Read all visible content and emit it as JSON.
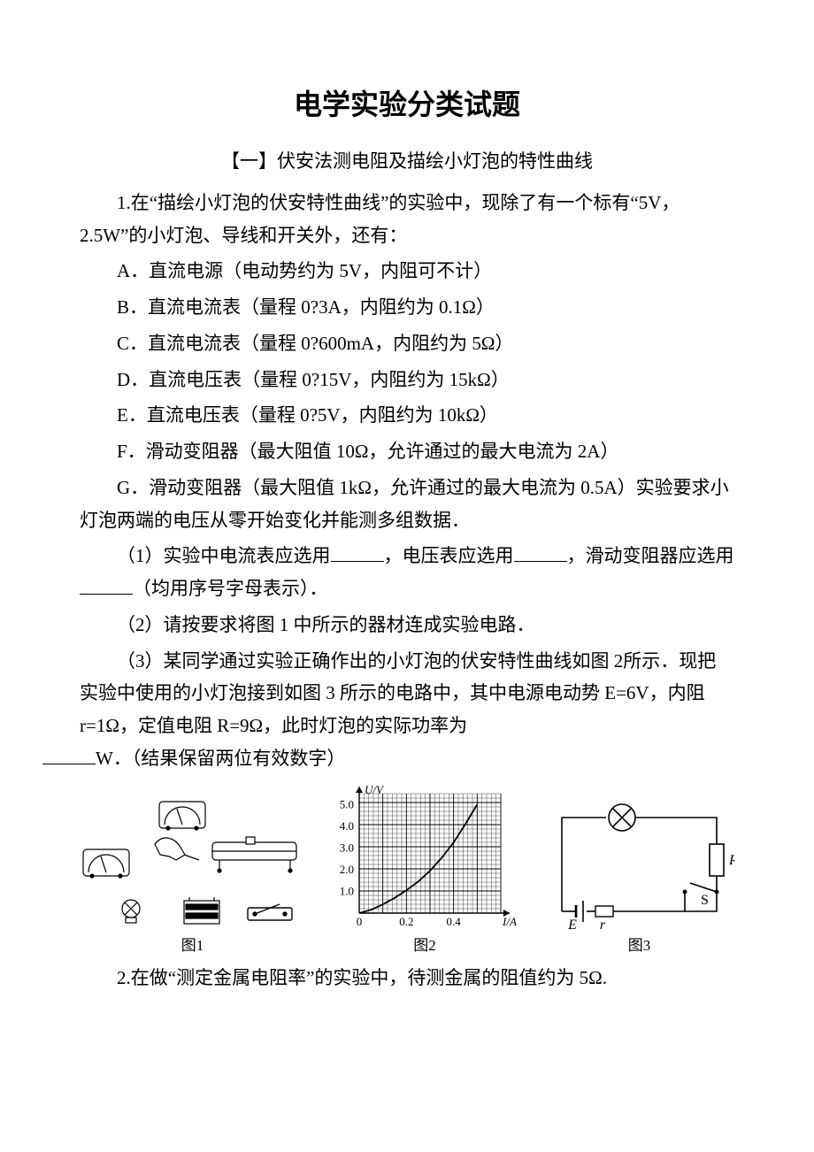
{
  "title": "电学实验分类试题",
  "section1": "【一】伏安法测电阻及描绘小灯泡的特性曲线",
  "q1": {
    "stem": "1.在“描绘小灯泡的伏安特性曲线”的实验中，现除了有一个标有“5V，2.5W”的小灯泡、导线和开关外，还有：",
    "optA": "A．直流电源（电动势约为 5V，内阻可不计）",
    "optB": "B．直流电流表（量程 0?3A，内阻约为 0.1Ω）",
    "optC": "C．直流电流表（量程 0?600mA，内阻约为 5Ω）",
    "optD": "D．直流电压表（量程 0?15V，内阻约为 15kΩ）",
    "optE": "E．直流电压表（量程 0?5V，内阻约为 10kΩ）",
    "optF": "F．滑动变阻器（最大阻值 10Ω，允许通过的最大电流为 2A）",
    "optG": "G．滑动变阻器（最大阻值 1kΩ，允许通过的最大电流为 0.5A）实验要求小灯泡两端的电压从零开始变化并能测多组数据．",
    "sub1_a": "（1）实验中电流表应选用",
    "sub1_b": "，电压表应选用",
    "sub1_c": "，滑动变阻器应选用",
    "sub1_d": "（均用序号字母表示）．",
    "sub2": "（2）请按要求将图 1 中所示的器材连成实验电路．",
    "sub3_a": "（3）某同学通过实验正确作出的小灯泡的伏安特性曲线如图 2所示．现把实验中使用的小灯泡接到如图 3 所示的电路中，其中电源电动势 E=6V，内阻 r=1Ω，定值电阻 R=9Ω，此时灯泡的实际功率为",
    "sub3_b": "W．（结果保留两位有效数字）"
  },
  "fig1": {
    "caption": "图1"
  },
  "fig2": {
    "caption": "图2",
    "ylabel": "U/V",
    "xlabel": "I/A",
    "yticks": [
      "1.0",
      "2.0",
      "3.0",
      "4.0",
      "5.0"
    ],
    "xticks": [
      "0",
      "0.2",
      "0.4"
    ],
    "curve_pts": [
      [
        0,
        0
      ],
      [
        0.05,
        0.15
      ],
      [
        0.1,
        0.4
      ],
      [
        0.15,
        0.7
      ],
      [
        0.2,
        1.05
      ],
      [
        0.25,
        1.45
      ],
      [
        0.3,
        1.95
      ],
      [
        0.35,
        2.55
      ],
      [
        0.4,
        3.25
      ],
      [
        0.45,
        4.1
      ],
      [
        0.5,
        5.0
      ]
    ],
    "xlim": [
      0,
      0.6
    ],
    "ylim": [
      0,
      5.5
    ],
    "colors": {
      "axis": "#000000",
      "grid": "#000000",
      "curve": "#000000",
      "tick_font": "13"
    }
  },
  "fig3": {
    "caption": "图3",
    "labels": {
      "R": "R",
      "S": "S",
      "E": "E",
      "r": "r"
    },
    "colors": {
      "wire": "#000000",
      "font": "16"
    }
  },
  "q2": "2.在做“测定金属电阻率”的实验中，待测金属的阻值约为 5Ω."
}
